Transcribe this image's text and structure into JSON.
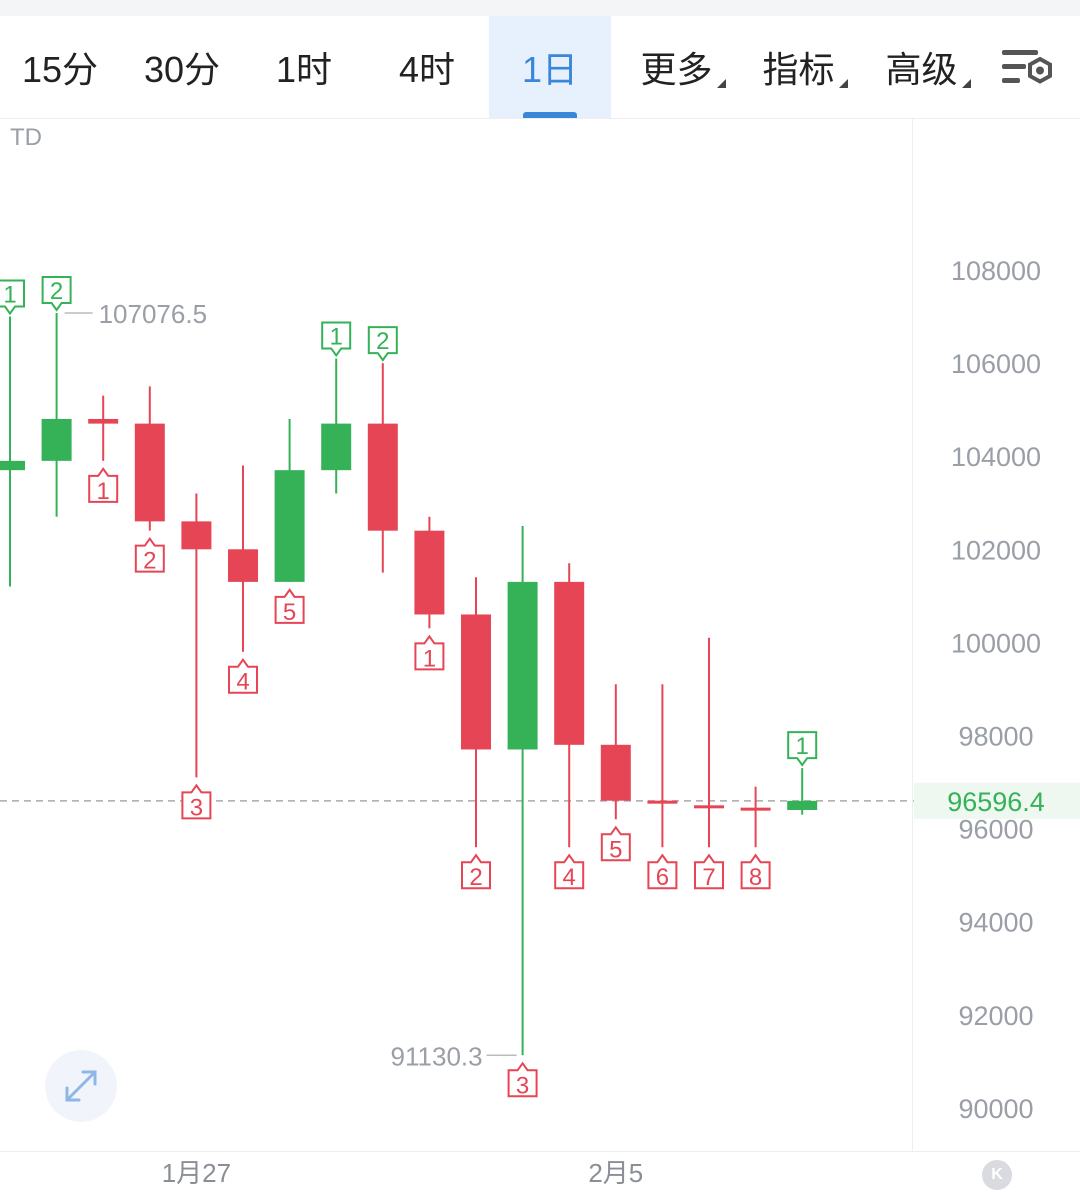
{
  "tabs": [
    {
      "label": "15分",
      "active": false,
      "dropdown": false
    },
    {
      "label": "30分",
      "active": false,
      "dropdown": false
    },
    {
      "label": "1时",
      "active": false,
      "dropdown": false
    },
    {
      "label": "4时",
      "active": false,
      "dropdown": false
    },
    {
      "label": "1日",
      "active": true,
      "dropdown": false
    },
    {
      "label": "更多",
      "active": false,
      "dropdown": true
    },
    {
      "label": "指标",
      "active": false,
      "dropdown": true
    },
    {
      "label": "高级",
      "active": false,
      "dropdown": true
    }
  ],
  "indicator_label": "TD",
  "badge_letter": "K",
  "colors": {
    "up": "#35b257",
    "down": "#e54554",
    "accent": "#3a86d9",
    "muted": "#9a9ea6"
  },
  "chart_data": {
    "type": "candlestick",
    "ylim": [
      89300,
      112000
    ],
    "y_ticks": [
      108000,
      106000,
      104000,
      102000,
      100000,
      98000,
      96000,
      94000,
      92000,
      90000
    ],
    "x_labels": [
      {
        "index": 4,
        "label": "1月27"
      },
      {
        "index": 13,
        "label": "2月5"
      }
    ],
    "current_price": 96596.4,
    "high_label": {
      "index": 1,
      "value": 107076.5,
      "text": "107076.5"
    },
    "low_label": {
      "index": 11,
      "value": 91130.3,
      "text": "91130.3"
    },
    "candles": [
      {
        "open": 103700,
        "close": 103900,
        "high": 107000,
        "low": 101200,
        "td": {
          "n": "1",
          "pos": "above",
          "color": "up"
        }
      },
      {
        "open": 103900,
        "close": 104800,
        "high": 107076.5,
        "low": 102700,
        "td": {
          "n": "2",
          "pos": "above",
          "color": "up"
        }
      },
      {
        "open": 104800,
        "close": 104700,
        "high": 105300,
        "low": 103900,
        "td": {
          "n": "1",
          "pos": "below",
          "color": "down"
        }
      },
      {
        "open": 104700,
        "close": 102600,
        "high": 105500,
        "low": 102400,
        "td": {
          "n": "2",
          "pos": "below",
          "color": "down"
        }
      },
      {
        "open": 102600,
        "close": 102000,
        "high": 103200,
        "low": 97100,
        "td": {
          "n": "3",
          "pos": "below",
          "color": "down"
        }
      },
      {
        "open": 102000,
        "close": 101300,
        "high": 103800,
        "low": 99800,
        "td": {
          "n": "4",
          "pos": "below",
          "color": "down"
        }
      },
      {
        "open": 101300,
        "close": 103700,
        "high": 104800,
        "low": 101300,
        "td": {
          "n": "5",
          "pos": "below",
          "color": "down"
        }
      },
      {
        "open": 103700,
        "close": 104700,
        "high": 106100,
        "low": 103200,
        "td": {
          "n": "1",
          "pos": "above",
          "color": "up"
        }
      },
      {
        "open": 104700,
        "close": 102400,
        "high": 106000,
        "low": 101500,
        "td": {
          "n": "2",
          "pos": "above",
          "color": "up"
        }
      },
      {
        "open": 102400,
        "close": 100600,
        "high": 102700,
        "low": 100300,
        "td": {
          "n": "1",
          "pos": "below",
          "color": "down"
        }
      },
      {
        "open": 100600,
        "close": 97700,
        "high": 101400,
        "low": 95600,
        "td": {
          "n": "2",
          "pos": "below",
          "color": "down"
        }
      },
      {
        "open": 97700,
        "close": 101300,
        "high": 102500,
        "low": 91130.3,
        "td": {
          "n": "3",
          "pos": "below",
          "color": "down"
        }
      },
      {
        "open": 101300,
        "close": 97800,
        "high": 101700,
        "low": 95600,
        "td": {
          "n": "4",
          "pos": "below",
          "color": "down"
        }
      },
      {
        "open": 97800,
        "close": 96600,
        "high": 99100,
        "low": 96200,
        "td": {
          "n": "5",
          "pos": "below",
          "color": "down"
        }
      },
      {
        "open": 96600,
        "close": 96550,
        "high": 99100,
        "low": 95600,
        "td": {
          "n": "6",
          "pos": "below",
          "color": "down"
        }
      },
      {
        "open": 96500,
        "close": 96450,
        "high": 100100,
        "low": 95600,
        "td": {
          "n": "7",
          "pos": "below",
          "color": "down"
        }
      },
      {
        "open": 96450,
        "close": 96400,
        "high": 96900,
        "low": 95600,
        "td": {
          "n": "8",
          "pos": "below",
          "color": "down"
        }
      },
      {
        "open": 96400,
        "close": 96596.4,
        "high": 97300,
        "low": 96300,
        "td": {
          "n": "1",
          "pos": "above",
          "color": "up"
        }
      }
    ]
  }
}
